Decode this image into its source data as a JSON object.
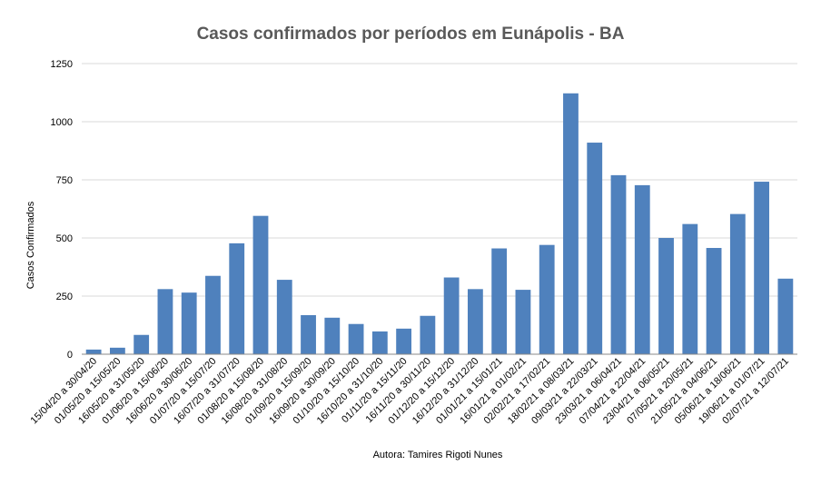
{
  "chart_data": {
    "type": "bar",
    "title": "Casos confirmados por períodos em Eunápolis - BA",
    "ylabel": "Casos Confirmados",
    "xlabel": "Autora: Tamires Rigoti Nunes",
    "ylim": [
      0,
      1250
    ],
    "yticks": [
      0,
      250,
      500,
      750,
      1000,
      1250
    ],
    "grid": true,
    "bar_color": "#4f81bd",
    "categories": [
      "15/04/20 a 30/04/20",
      "01/05/20 a 15/05/20",
      "16/05/20 a 31/05/20",
      "01/06/20 a 15/06/20",
      "16/06/20 a 30/06/20",
      "01/07/20 a 15/07/20",
      "16/07/20 a 31/07/20",
      "01/08/20 a 15/08/20",
      "16/08/20 a 31/08/20",
      "01/09/20 a 15/09/20",
      "16/09/20 a 30/09/20",
      "01/10/20 a 15/10/20",
      "16/10/20 a 31/10/20",
      "01/11/20 a 15/11/20",
      "16/11/20 a 30/11/20",
      "01/12/20 a 15/12/20",
      "16/12/20 a 31/12/20",
      "01/01/21 a 15/01/21",
      "16/01/21 a 01/02/21",
      "02/02/21 a 17/02/21",
      "18/02/21 a 08/03/21",
      "09/03/21 a 22/03/21",
      "23/03/21 a 06/04/21",
      "07/04/21 a 22/04/21",
      "23/04/21 a 06/05/21",
      "07/05/21 a 20/05/21",
      "21/05/21 a 04/06/21",
      "05/06/21 a 18/06/21",
      "19/06/21 a 01/07/21",
      "02/07/21 a 12/07/21"
    ],
    "values": [
      20,
      28,
      83,
      280,
      265,
      337,
      477,
      595,
      320,
      168,
      157,
      130,
      98,
      110,
      165,
      330,
      280,
      455,
      277,
      470,
      1122,
      910,
      770,
      727,
      500,
      560,
      457,
      603,
      742,
      325
    ]
  }
}
